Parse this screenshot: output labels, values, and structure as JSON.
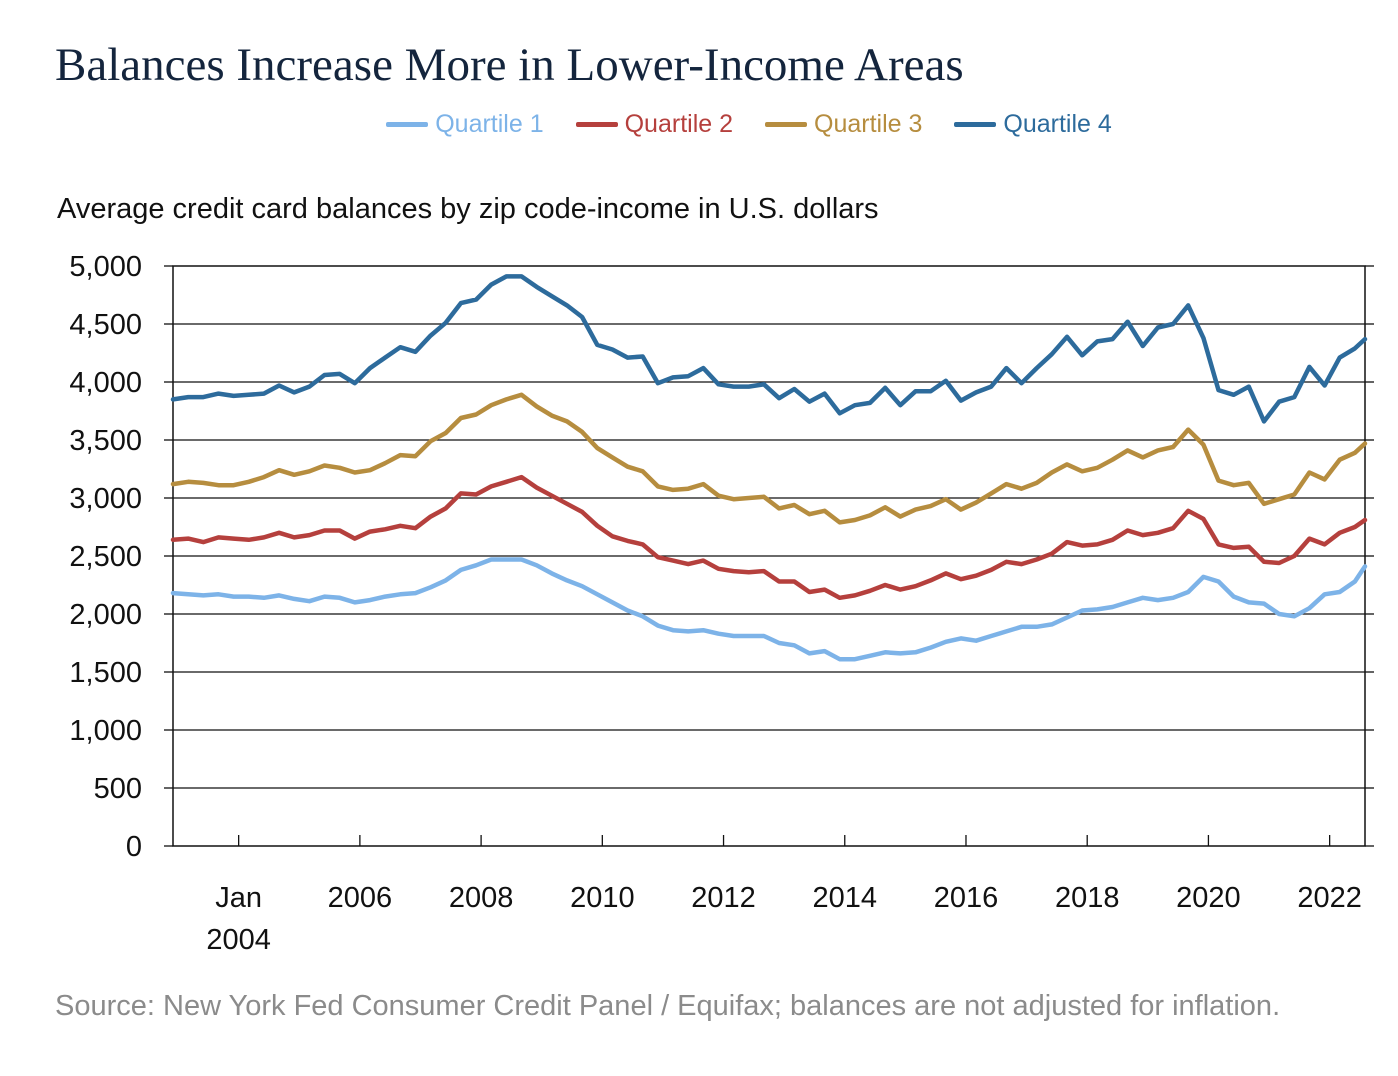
{
  "title": "Balances Increase More in Lower-Income Areas",
  "subtitle": "Average credit card balances by zip code-income in U.S. dollars",
  "source": "Source: New York Fed Consumer Credit Panel / Equifax; balances are not adjusted for inflation.",
  "colors": {
    "q1": "#7db3e8",
    "q2": "#b5403d",
    "q3": "#b68d3f",
    "q4": "#2d6b9c"
  },
  "chart_data": {
    "type": "line",
    "title": "Balances Increase More in Lower-Income Areas",
    "ylabel": "Average credit card balances by zip code-income in U.S. dollars",
    "xlabel": "",
    "xlim": [
      "2003-01",
      "2022-09"
    ],
    "ylim": [
      0,
      5000
    ],
    "yticks": [
      0,
      500,
      1000,
      1500,
      2000,
      2500,
      3000,
      3500,
      4000,
      4500,
      5000
    ],
    "ytick_labels": [
      "0",
      "500",
      "1,000",
      "1,500",
      "2,000",
      "2,500",
      "3,000",
      "3,500",
      "4,000",
      "4,500",
      "5,000"
    ],
    "xticks": [
      {
        "at": "2004-02",
        "label": [
          "Jan",
          "2004"
        ]
      },
      {
        "at": "2006-02",
        "label": [
          "2006"
        ]
      },
      {
        "at": "2008-02",
        "label": [
          "2008"
        ]
      },
      {
        "at": "2010-02",
        "label": [
          "2010"
        ]
      },
      {
        "at": "2012-02",
        "label": [
          "2012"
        ]
      },
      {
        "at": "2014-02",
        "label": [
          "2014"
        ]
      },
      {
        "at": "2016-02",
        "label": [
          "2016"
        ]
      },
      {
        "at": "2018-02",
        "label": [
          "2018"
        ]
      },
      {
        "at": "2020-02",
        "label": [
          "2020"
        ]
      },
      {
        "at": "2022-02",
        "label": [
          "2022"
        ]
      }
    ],
    "grid": "horizontal",
    "legend": "top-center",
    "x": [
      "2003-01",
      "2003-04",
      "2003-07",
      "2003-10",
      "2004-01",
      "2004-04",
      "2004-07",
      "2004-10",
      "2005-01",
      "2005-04",
      "2005-07",
      "2005-10",
      "2006-01",
      "2006-04",
      "2006-07",
      "2006-10",
      "2007-01",
      "2007-04",
      "2007-07",
      "2007-10",
      "2008-01",
      "2008-04",
      "2008-07",
      "2008-10",
      "2009-01",
      "2009-04",
      "2009-07",
      "2009-10",
      "2010-01",
      "2010-04",
      "2010-07",
      "2010-10",
      "2011-01",
      "2011-04",
      "2011-07",
      "2011-10",
      "2012-01",
      "2012-04",
      "2012-07",
      "2012-10",
      "2013-01",
      "2013-04",
      "2013-07",
      "2013-10",
      "2014-01",
      "2014-04",
      "2014-07",
      "2014-10",
      "2015-01",
      "2015-04",
      "2015-07",
      "2015-10",
      "2016-01",
      "2016-04",
      "2016-07",
      "2016-10",
      "2017-01",
      "2017-04",
      "2017-07",
      "2017-10",
      "2018-01",
      "2018-04",
      "2018-07",
      "2018-10",
      "2019-01",
      "2019-04",
      "2019-07",
      "2019-10",
      "2020-01",
      "2020-04",
      "2020-07",
      "2020-10",
      "2021-01",
      "2021-04",
      "2021-07",
      "2021-10",
      "2022-01",
      "2022-04",
      "2022-07",
      "2022-09"
    ],
    "series": [
      {
        "name": "Quartile 1",
        "color": "#7db3e8",
        "values": [
          2180,
          2170,
          2160,
          2170,
          2150,
          2150,
          2140,
          2160,
          2130,
          2110,
          2150,
          2140,
          2100,
          2120,
          2150,
          2170,
          2180,
          2230,
          2290,
          2380,
          2420,
          2470,
          2470,
          2470,
          2420,
          2350,
          2290,
          2240,
          2170,
          2100,
          2030,
          1980,
          1900,
          1860,
          1850,
          1860,
          1830,
          1810,
          1810,
          1810,
          1750,
          1730,
          1660,
          1680,
          1610,
          1610,
          1640,
          1670,
          1660,
          1670,
          1710,
          1760,
          1790,
          1770,
          1810,
          1850,
          1890,
          1890,
          1910,
          1970,
          2030,
          2040,
          2060,
          2100,
          2140,
          2120,
          2140,
          2190,
          2320,
          2280,
          2150,
          2100,
          2090,
          2000,
          1980,
          2050,
          2170,
          2190,
          2280,
          2410
        ]
      },
      {
        "name": "Quartile 2",
        "color": "#b5403d",
        "values": [
          2640,
          2650,
          2620,
          2660,
          2650,
          2640,
          2660,
          2700,
          2660,
          2680,
          2720,
          2720,
          2650,
          2710,
          2730,
          2760,
          2740,
          2840,
          2910,
          3040,
          3030,
          3100,
          3140,
          3180,
          3090,
          3020,
          2950,
          2880,
          2760,
          2670,
          2630,
          2600,
          2490,
          2460,
          2430,
          2460,
          2390,
          2370,
          2360,
          2370,
          2280,
          2280,
          2190,
          2210,
          2140,
          2160,
          2200,
          2250,
          2210,
          2240,
          2290,
          2350,
          2300,
          2330,
          2380,
          2450,
          2430,
          2470,
          2520,
          2620,
          2590,
          2600,
          2640,
          2720,
          2680,
          2700,
          2740,
          2890,
          2820,
          2600,
          2570,
          2580,
          2450,
          2440,
          2500,
          2650,
          2600,
          2700,
          2750,
          2810
        ]
      },
      {
        "name": "Quartile 3",
        "color": "#b68d3f",
        "values": [
          3120,
          3140,
          3130,
          3110,
          3110,
          3140,
          3180,
          3240,
          3200,
          3230,
          3280,
          3260,
          3220,
          3240,
          3300,
          3370,
          3360,
          3490,
          3560,
          3690,
          3720,
          3800,
          3850,
          3890,
          3790,
          3710,
          3660,
          3570,
          3430,
          3350,
          3270,
          3230,
          3100,
          3070,
          3080,
          3120,
          3020,
          2990,
          3000,
          3010,
          2910,
          2940,
          2860,
          2890,
          2790,
          2810,
          2850,
          2920,
          2840,
          2900,
          2930,
          2990,
          2900,
          2960,
          3040,
          3120,
          3080,
          3130,
          3220,
          3290,
          3230,
          3260,
          3330,
          3410,
          3350,
          3410,
          3440,
          3590,
          3460,
          3150,
          3110,
          3130,
          2950,
          2990,
          3030,
          3220,
          3160,
          3330,
          3390,
          3470
        ]
      },
      {
        "name": "Quartile 4",
        "color": "#2d6b9c",
        "values": [
          3850,
          3870,
          3870,
          3900,
          3880,
          3890,
          3900,
          3970,
          3910,
          3960,
          4060,
          4070,
          3990,
          4120,
          4210,
          4300,
          4260,
          4400,
          4510,
          4680,
          4710,
          4840,
          4910,
          4910,
          4820,
          4740,
          4660,
          4560,
          4320,
          4280,
          4210,
          4220,
          3990,
          4040,
          4050,
          4120,
          3980,
          3960,
          3960,
          3980,
          3860,
          3940,
          3830,
          3900,
          3730,
          3800,
          3820,
          3950,
          3800,
          3920,
          3920,
          4010,
          3840,
          3910,
          3960,
          4120,
          3990,
          4120,
          4240,
          4390,
          4230,
          4350,
          4370,
          4520,
          4310,
          4470,
          4500,
          4660,
          4380,
          3930,
          3890,
          3960,
          3660,
          3830,
          3870,
          4130,
          3970,
          4210,
          4290,
          4370
        ]
      }
    ]
  }
}
